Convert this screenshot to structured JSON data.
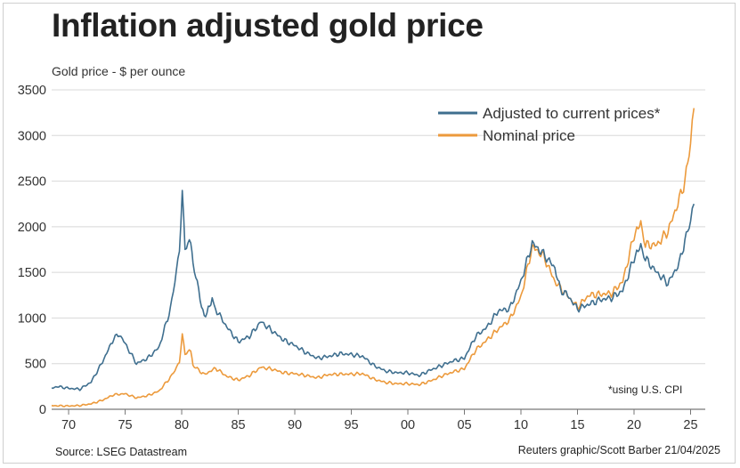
{
  "title": "Inflation adjusted gold price",
  "source": "Source: LSEG Datastream",
  "credit": "Reuters graphic/Scott Barber 21/04/2025",
  "colors": {
    "adjusted": "#3f6f8f",
    "nominal": "#ec9a3c",
    "grid": "#d8d8d8"
  },
  "chart_data": {
    "type": "line",
    "title": "Inflation adjusted gold price",
    "ylabel": "Gold price - $ per ounce",
    "xlabel": "",
    "xlim": [
      1968.5,
      2026.3
    ],
    "ylim": [
      0,
      3500
    ],
    "yticks": [
      0,
      500,
      1000,
      1500,
      2000,
      2500,
      3000,
      3500
    ],
    "xticks": [
      1970,
      1975,
      1980,
      1985,
      1990,
      1995,
      2000,
      2005,
      2010,
      2015,
      2020,
      2025
    ],
    "xtick_labels": [
      "70",
      "75",
      "80",
      "85",
      "90",
      "95",
      "00",
      "05",
      "10",
      "15",
      "20",
      "25"
    ],
    "grid": "horizontal",
    "legend_position": "top-right",
    "annotation": "*using U.S. CPI",
    "series": [
      {
        "name": "Adjusted to current prices*",
        "key": "adjusted",
        "points": [
          [
            1968.5,
            230
          ],
          [
            1969,
            250
          ],
          [
            1970,
            230
          ],
          [
            1971,
            220
          ],
          [
            1972,
            300
          ],
          [
            1973,
            520
          ],
          [
            1974,
            780
          ],
          [
            1974.5,
            820
          ],
          [
            1975,
            720
          ],
          [
            1976,
            500
          ],
          [
            1977,
            560
          ],
          [
            1978,
            680
          ],
          [
            1979,
            1100
          ],
          [
            1979.8,
            1700
          ],
          [
            1980.05,
            2430
          ],
          [
            1980.3,
            1750
          ],
          [
            1980.8,
            1850
          ],
          [
            1981,
            1600
          ],
          [
            1981.5,
            1300
          ],
          [
            1982,
            1000
          ],
          [
            1982.7,
            1200
          ],
          [
            1983,
            1100
          ],
          [
            1984,
            900
          ],
          [
            1985,
            740
          ],
          [
            1986,
            800
          ],
          [
            1987,
            960
          ],
          [
            1988,
            860
          ],
          [
            1989,
            760
          ],
          [
            1990,
            700
          ],
          [
            1991,
            620
          ],
          [
            1992,
            560
          ],
          [
            1993,
            580
          ],
          [
            1994,
            610
          ],
          [
            1995,
            600
          ],
          [
            1996,
            580
          ],
          [
            1997,
            480
          ],
          [
            1998,
            420
          ],
          [
            1999,
            400
          ],
          [
            2000,
            400
          ],
          [
            2001,
            370
          ],
          [
            2002,
            430
          ],
          [
            2003,
            480
          ],
          [
            2004,
            530
          ],
          [
            2005,
            560
          ],
          [
            2006,
            800
          ],
          [
            2007,
            900
          ],
          [
            2008,
            1080
          ],
          [
            2009,
            1100
          ],
          [
            2010,
            1400
          ],
          [
            2011,
            1820
          ],
          [
            2012,
            1700
          ],
          [
            2013,
            1550
          ],
          [
            2013.5,
            1300
          ],
          [
            2014,
            1270
          ],
          [
            2015,
            1100
          ],
          [
            2016,
            1150
          ],
          [
            2017,
            1200
          ],
          [
            2018,
            1220
          ],
          [
            2019,
            1300
          ],
          [
            2020,
            1650
          ],
          [
            2020.6,
            1800
          ],
          [
            2021,
            1650
          ],
          [
            2022,
            1500
          ],
          [
            2023,
            1380
          ],
          [
            2024,
            1600
          ],
          [
            2024.5,
            1850
          ],
          [
            2025,
            2050
          ],
          [
            2025.3,
            2250
          ]
        ]
      },
      {
        "name": "Nominal price",
        "key": "nominal",
        "points": [
          [
            1968.5,
            40
          ],
          [
            1970,
            36
          ],
          [
            1971,
            41
          ],
          [
            1972,
            60
          ],
          [
            1973,
            100
          ],
          [
            1974,
            160
          ],
          [
            1975,
            170
          ],
          [
            1976,
            125
          ],
          [
            1977,
            150
          ],
          [
            1978,
            200
          ],
          [
            1979,
            350
          ],
          [
            1979.8,
            500
          ],
          [
            1980.05,
            840
          ],
          [
            1980.3,
            600
          ],
          [
            1980.8,
            650
          ],
          [
            1981,
            480
          ],
          [
            1982,
            380
          ],
          [
            1983,
            450
          ],
          [
            1984,
            360
          ],
          [
            1985,
            320
          ],
          [
            1986,
            370
          ],
          [
            1987,
            460
          ],
          [
            1988,
            440
          ],
          [
            1989,
            400
          ],
          [
            1990,
            390
          ],
          [
            1991,
            370
          ],
          [
            1992,
            345
          ],
          [
            1993,
            380
          ],
          [
            1994,
            385
          ],
          [
            1995,
            385
          ],
          [
            1996,
            390
          ],
          [
            1997,
            330
          ],
          [
            1998,
            295
          ],
          [
            1999,
            280
          ],
          [
            2000,
            280
          ],
          [
            2001,
            270
          ],
          [
            2002,
            310
          ],
          [
            2003,
            365
          ],
          [
            2004,
            410
          ],
          [
            2005,
            445
          ],
          [
            2006,
            650
          ],
          [
            2007,
            760
          ],
          [
            2008,
            880
          ],
          [
            2009,
            980
          ],
          [
            2010,
            1230
          ],
          [
            2011,
            1780
          ],
          [
            2012,
            1680
          ],
          [
            2013,
            1400
          ],
          [
            2014,
            1260
          ],
          [
            2015,
            1120
          ],
          [
            2016,
            1250
          ],
          [
            2017,
            1260
          ],
          [
            2018,
            1270
          ],
          [
            2019,
            1400
          ],
          [
            2020,
            1900
          ],
          [
            2020.6,
            2050
          ],
          [
            2021,
            1800
          ],
          [
            2022,
            1800
          ],
          [
            2023,
            1950
          ],
          [
            2024,
            2300
          ],
          [
            2024.5,
            2500
          ],
          [
            2025,
            2900
          ],
          [
            2025.3,
            3300
          ]
        ]
      }
    ]
  }
}
